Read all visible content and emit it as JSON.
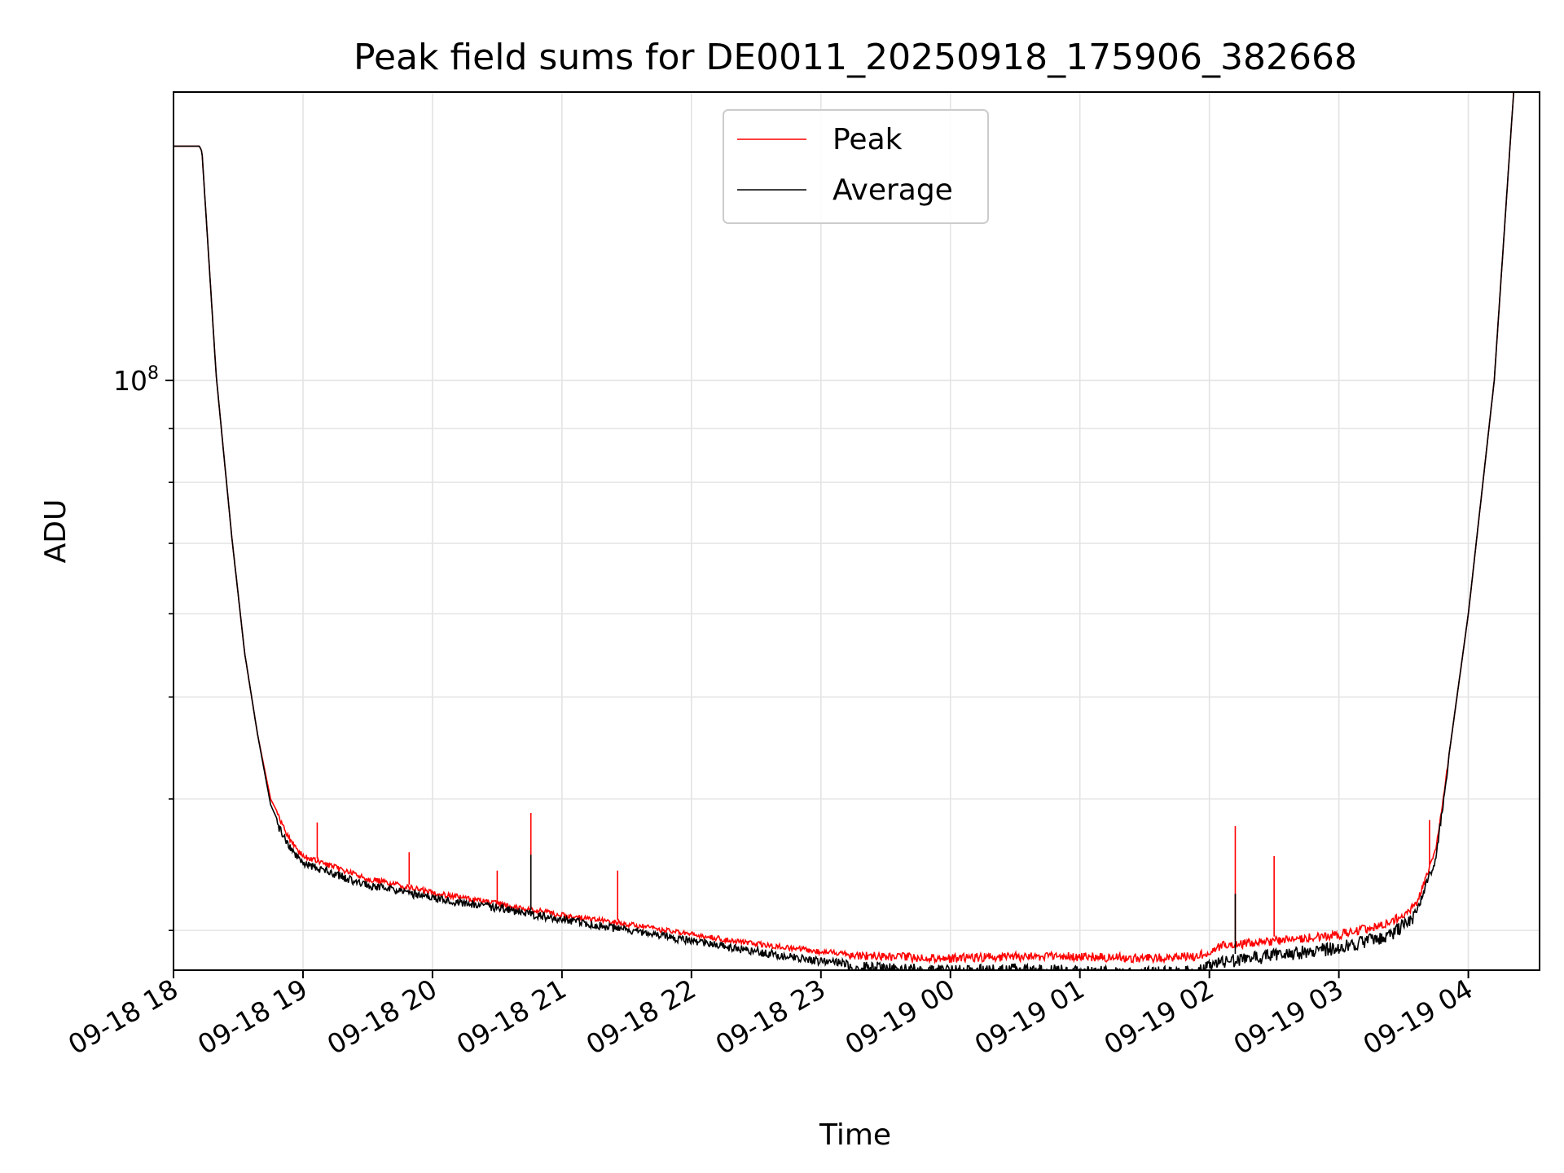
{
  "chart_data": {
    "type": "line",
    "title": "Peak field sums for DE0011_20250918_175906_382668",
    "xlabel": "Time",
    "ylabel": "ADU",
    "yscale": "log",
    "grid": true,
    "legend_position": "top-center",
    "x_unit": "hours since 09-18 18:00",
    "xlim": [
      0,
      10.55
    ],
    "ylim": [
      27500000,
      188000000
    ],
    "x_tick_values": [
      0,
      1,
      2,
      3,
      4,
      5,
      6,
      7,
      8,
      9,
      10
    ],
    "x_tick_labels": [
      "09-18 18",
      "09-18 19",
      "09-18 20",
      "09-18 21",
      "09-18 22",
      "09-18 23",
      "09-19 00",
      "09-19 01",
      "09-19 02",
      "09-19 03",
      "09-19 04"
    ],
    "y_major_tick_value": 100000000,
    "y_major_tick_label": "10^8",
    "y_minor_tick_values": [
      30000000,
      40000000,
      50000000,
      60000000,
      70000000,
      80000000,
      90000000,
      200000000
    ],
    "series": [
      {
        "name": "Peak",
        "color": "#ff0000",
        "x": [
          0.0,
          0.2,
          0.22,
          0.33,
          0.45,
          0.55,
          0.65,
          0.75,
          0.82,
          0.9,
          1.0,
          1.5,
          2.0,
          2.5,
          3.0,
          3.5,
          4.0,
          4.5,
          5.0,
          5.5,
          6.0,
          6.5,
          7.0,
          7.5,
          7.9,
          8.1,
          8.5,
          9.0,
          9.4,
          9.6,
          9.75,
          9.85,
          10.0,
          10.2,
          10.35
        ],
        "values": [
          167000000,
          167000000,
          165000000,
          101000000,
          71000000,
          55000000,
          46000000,
          40000000,
          38500000,
          36800000,
          35500000,
          33800000,
          32800000,
          32000000,
          31200000,
          30600000,
          29900000,
          29300000,
          28800000,
          28600000,
          28500000,
          28600000,
          28600000,
          28500000,
          28600000,
          29300000,
          29600000,
          30000000,
          30800000,
          32000000,
          36000000,
          44000000,
          60000000,
          100000000,
          188000000
        ]
      },
      {
        "name": "Average",
        "color": "#000000",
        "x": [
          0.0,
          0.2,
          0.22,
          0.33,
          0.45,
          0.55,
          0.65,
          0.75,
          0.82,
          0.9,
          1.0,
          1.5,
          2.0,
          2.5,
          3.0,
          3.5,
          4.0,
          4.5,
          5.0,
          5.5,
          6.0,
          6.5,
          7.0,
          7.5,
          7.9,
          8.1,
          8.5,
          9.0,
          9.4,
          9.6,
          9.75,
          9.85,
          10.0,
          10.2,
          10.35
        ],
        "values": [
          167000000,
          167000000,
          165000000,
          101000000,
          71000000,
          55000000,
          46000000,
          39500000,
          37800000,
          36300000,
          35100000,
          33400000,
          32500000,
          31800000,
          31000000,
          30300000,
          29600000,
          28900000,
          28300000,
          28000000,
          27800000,
          27900000,
          27800000,
          27700000,
          27800000,
          28400000,
          28800000,
          29300000,
          30100000,
          31500000,
          35500000,
          44000000,
          60000000,
          100000000,
          188000000
        ]
      }
    ],
    "spikes": [
      {
        "series": "Peak",
        "x": 1.11,
        "value": 38000000
      },
      {
        "series": "Peak",
        "x": 1.82,
        "value": 35600000
      },
      {
        "series": "Peak",
        "x": 2.5,
        "value": 34200000
      },
      {
        "series": "Peak",
        "x": 2.76,
        "value": 38800000
      },
      {
        "series": "Average",
        "x": 2.76,
        "value": 35400000
      },
      {
        "series": "Peak",
        "x": 3.43,
        "value": 34200000
      },
      {
        "series": "Peak",
        "x": 8.2,
        "value": 37700000
      },
      {
        "series": "Average",
        "x": 8.2,
        "value": 32500000
      },
      {
        "series": "Peak",
        "x": 8.5,
        "value": 35300000
      },
      {
        "series": "Peak",
        "x": 9.7,
        "value": 38200000
      }
    ]
  }
}
